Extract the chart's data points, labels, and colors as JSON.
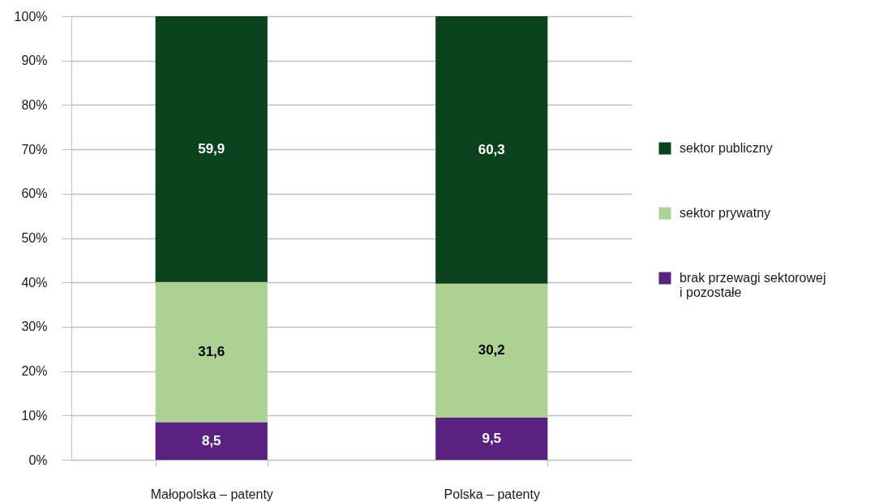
{
  "chart_data": {
    "type": "bar",
    "stacked": true,
    "categories": [
      "Małopolska – patenty",
      "Polska – patenty"
    ],
    "series": [
      {
        "name": "brak przewagi sektorowej i pozostałe",
        "color": "#5b2180",
        "values": [
          8.5,
          9.5
        ],
        "value_labels": [
          "8,5",
          "9,5"
        ]
      },
      {
        "name": "sektor prywatny",
        "color": "#abd193",
        "values": [
          31.6,
          30.2
        ],
        "value_labels": [
          "31,6",
          "30,2"
        ]
      },
      {
        "name": "sektor publiczny",
        "color": "#0a421e",
        "values": [
          59.9,
          60.3
        ],
        "value_labels": [
          "59,9",
          "60,3"
        ]
      }
    ],
    "ylim": [
      0,
      100
    ],
    "yticks": [
      {
        "value": 0,
        "label": "0%"
      },
      {
        "value": 10,
        "label": "10%"
      },
      {
        "value": 20,
        "label": "20%"
      },
      {
        "value": 30,
        "label": "30%"
      },
      {
        "value": 40,
        "label": "40%"
      },
      {
        "value": 50,
        "label": "50%"
      },
      {
        "value": 60,
        "label": "60%"
      },
      {
        "value": 70,
        "label": "70%"
      },
      {
        "value": 80,
        "label": "80%"
      },
      {
        "value": 90,
        "label": "90%"
      },
      {
        "value": 100,
        "label": "100%"
      }
    ],
    "grid": "y",
    "legend": "right"
  }
}
